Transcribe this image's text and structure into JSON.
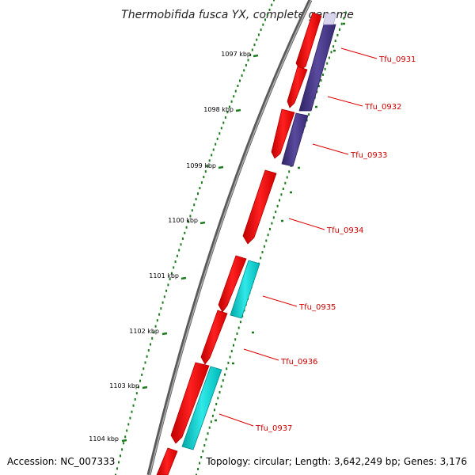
{
  "title": "Thermobifida fusca YX, complete genome",
  "accession": "Accession: NC_007333",
  "topology": "Topology: circular; Length: 3,642,249 bp; Genes: 3,176",
  "kbp_labels": [
    "1097 kbp",
    "1098 kbp",
    "1099 kbp",
    "1100 kbp",
    "1101 kbp",
    "1102 kbp",
    "1103 kbp",
    "1104 kbp"
  ],
  "gene_labels": [
    "Tfu_0931",
    "Tfu_0932",
    "Tfu_0933",
    "Tfu_0934",
    "Tfu_0935",
    "Tfu_0936",
    "Tfu_0937"
  ],
  "colors": {
    "cds": "#ff0000",
    "cds_dark": "#b00000",
    "feature_purple": "#4b3c8c",
    "feature_cyan": "#00cccc",
    "backbone": "#777777",
    "ticks": "#1e7a1e",
    "label_line": "#dd0000"
  }
}
